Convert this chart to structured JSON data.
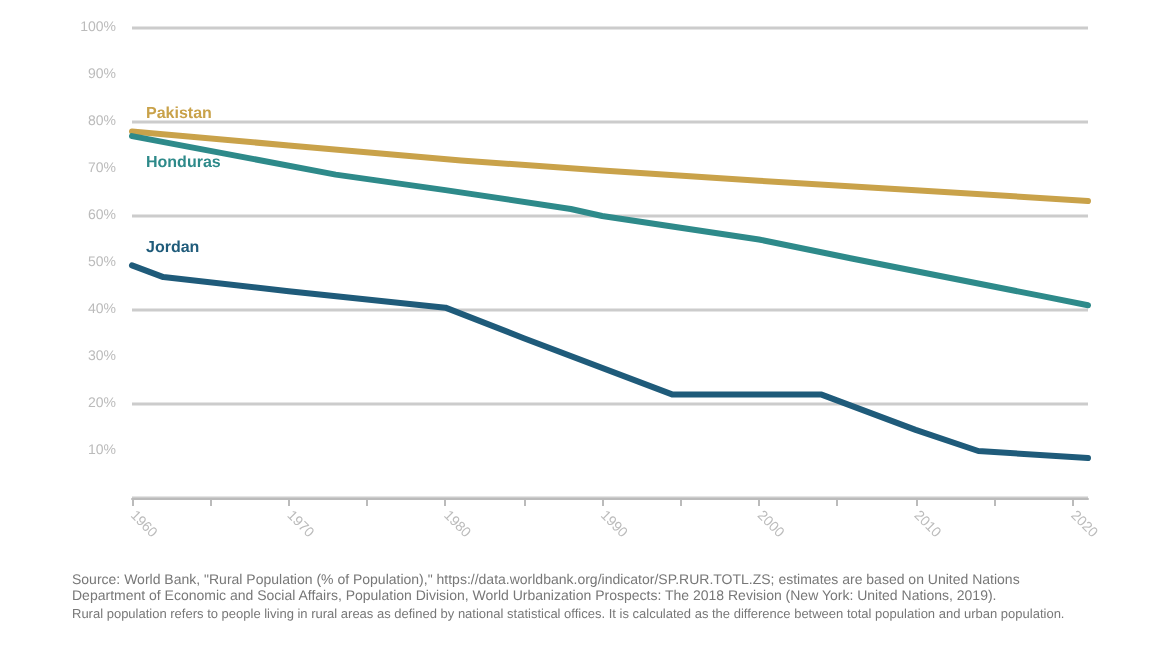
{
  "chart_data": {
    "type": "line",
    "series": [
      {
        "name": "Pakistan",
        "color": "#c9a24a",
        "x": [
          1960,
          1970,
          1981,
          1990,
          2000,
          2010,
          2021
        ],
        "values": [
          78,
          75,
          71.8,
          69.7,
          67.5,
          65.5,
          63.2
        ]
      },
      {
        "name": "Honduras",
        "color": "#2e8a8a",
        "x": [
          1960,
          1973,
          1980,
          1988,
          1990,
          2000,
          2006,
          2018,
          2021
        ],
        "values": [
          77,
          68.8,
          65.5,
          61.5,
          60,
          55,
          50.9,
          43,
          41
        ]
      },
      {
        "name": "Jordan",
        "color": "#1f5b7a",
        "x": [
          1960,
          1962,
          1970,
          1980,
          1985,
          1994.5,
          2004,
          2010,
          2014,
          2021
        ],
        "values": [
          49.5,
          47,
          44,
          40.5,
          34,
          22,
          22,
          14.5,
          10,
          8.5
        ]
      }
    ],
    "xlim": [
      1960,
      2021
    ],
    "xticks": [
      1960,
      {
        "value": 1965,
        "label": null
      },
      1970,
      {
        "value": 1975,
        "label": null
      },
      1980,
      {
        "value": 1985,
        "label": null
      },
      1990,
      {
        "value": 1995,
        "label": null
      },
      2000,
      {
        "value": 2005,
        "label": null
      },
      2010,
      {
        "value": 2015,
        "label": null
      },
      2020
    ],
    "ylim": [
      0,
      100
    ],
    "yticks": [
      {
        "value": 10,
        "label": "10%"
      },
      {
        "value": 20,
        "label": "20%"
      },
      {
        "value": 30,
        "label": "30%"
      },
      {
        "value": 40,
        "label": "40%"
      },
      {
        "value": 50,
        "label": "50%"
      },
      {
        "value": 60,
        "label": "60%"
      },
      {
        "value": 70,
        "label": "70%"
      },
      {
        "value": 80,
        "label": "80%"
      },
      {
        "value": 90,
        "label": "90%"
      },
      {
        "value": 100,
        "label": "100%"
      }
    ],
    "grid": "y",
    "legend": false,
    "marker": "none",
    "line_style": "solid",
    "annotations": [
      "Source: World Bank, \"Rural Population (% of Population),\" https://data.worldbank.org/indicator/SP.RUR.TOTL.ZS; estimates are based on United Nations Department of Economic and Social Affairs, Population Division, World Urbanization Prospects: The 2018 Revision (New York: United Nations, 2019).",
      "Rural population refers to people living in rural areas as defined by national statistical offices. It is calculated as the difference between total population and urban population."
    ]
  }
}
